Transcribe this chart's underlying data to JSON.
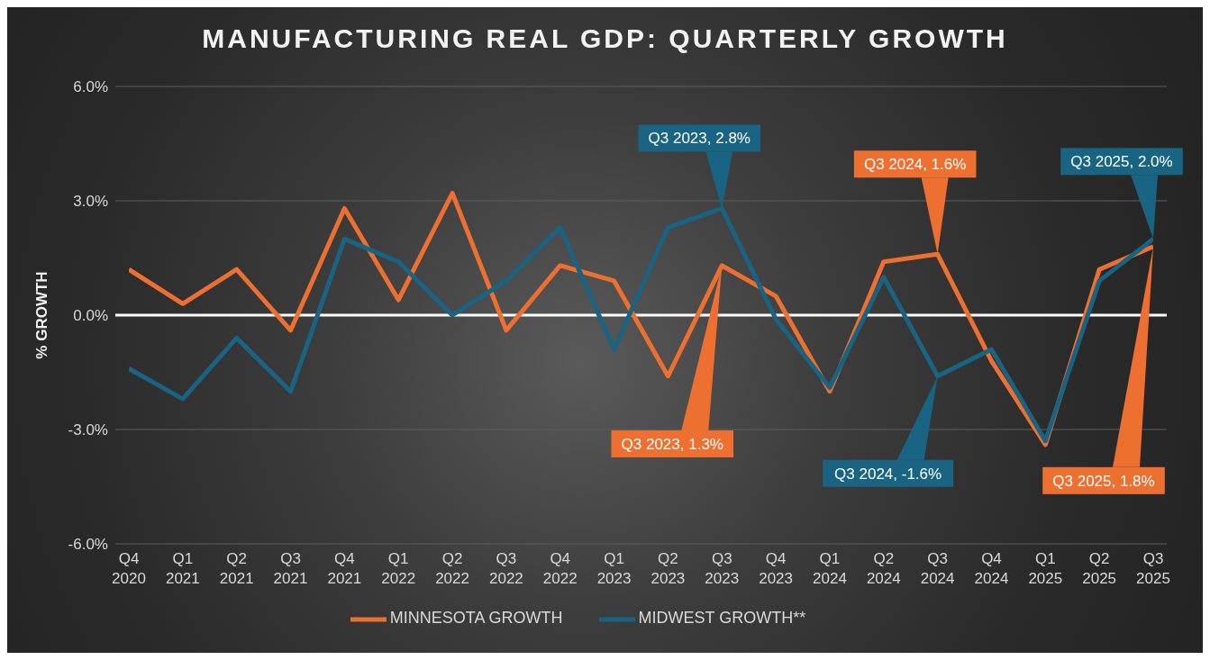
{
  "chart_data": {
    "type": "line",
    "title": "MANUFACTURING REAL GDP: QUARTERLY GROWTH",
    "ylabel": "% GROWTH",
    "categories": [
      "Q4 2020",
      "Q1 2021",
      "Q2 2021",
      "Q3 2021",
      "Q4 2021",
      "Q1 2022",
      "Q2 2022",
      "Q3 2022",
      "Q4 2022",
      "Q1 2023",
      "Q2 2023",
      "Q3 2023",
      "Q4 2023",
      "Q1 2024",
      "Q2 2024",
      "Q3 2024",
      "Q4 2024",
      "Q1 2025",
      "Q2 2025",
      "Q3 2025"
    ],
    "series": [
      {
        "name": "MINNESOTA GROWTH",
        "color": "#ed7031",
        "values": [
          1.2,
          0.3,
          1.2,
          -0.4,
          2.8,
          0.4,
          3.2,
          -0.4,
          1.3,
          0.9,
          -1.6,
          1.3,
          0.5,
          -2.0,
          1.4,
          1.6,
          -1.2,
          -3.4,
          1.2,
          1.8
        ]
      },
      {
        "name": "MIDWEST GROWTH**",
        "color": "#186482",
        "values": [
          -1.4,
          -2.2,
          -0.6,
          -2.0,
          2.0,
          1.4,
          0.0,
          0.9,
          2.3,
          -0.9,
          2.3,
          2.8,
          -0.1,
          -1.9,
          1.0,
          -1.6,
          -0.9,
          -3.3,
          0.9,
          2.0
        ]
      }
    ],
    "ylim": [
      -6,
      6
    ],
    "yticks": [
      {
        "value": -6,
        "label": "-6.0%"
      },
      {
        "value": -3,
        "label": "-3.0%"
      },
      {
        "value": 0,
        "label": "0.0%"
      },
      {
        "value": 3,
        "label": "3.0%"
      },
      {
        "value": 6,
        "label": "6.0%"
      }
    ],
    "grid": "y",
    "legend": "bottom",
    "marker": "none",
    "line_style": "solid",
    "ref_lines": [
      {
        "axis": "y",
        "value": 0,
        "color": "#ffffff"
      }
    ],
    "annotations": [
      {
        "text": "Q3 2023, 2.8%",
        "x": "Q3 2023",
        "y": 2.8
      },
      {
        "text": "Q3 2023, 1.3%",
        "x": "Q3 2023",
        "y": 1.3
      },
      {
        "text": "Q3 2024, 1.6%",
        "x": "Q3 2024",
        "y": 1.6
      },
      {
        "text": "Q3 2024, -1.6%",
        "x": "Q3 2024",
        "y": -1.6
      },
      {
        "text": "Q3 2025, 2.0%",
        "x": "Q3 2025",
        "y": 2.0
      },
      {
        "text": "Q3 2025, 1.8%",
        "x": "Q3 2025",
        "y": 1.8
      }
    ]
  }
}
